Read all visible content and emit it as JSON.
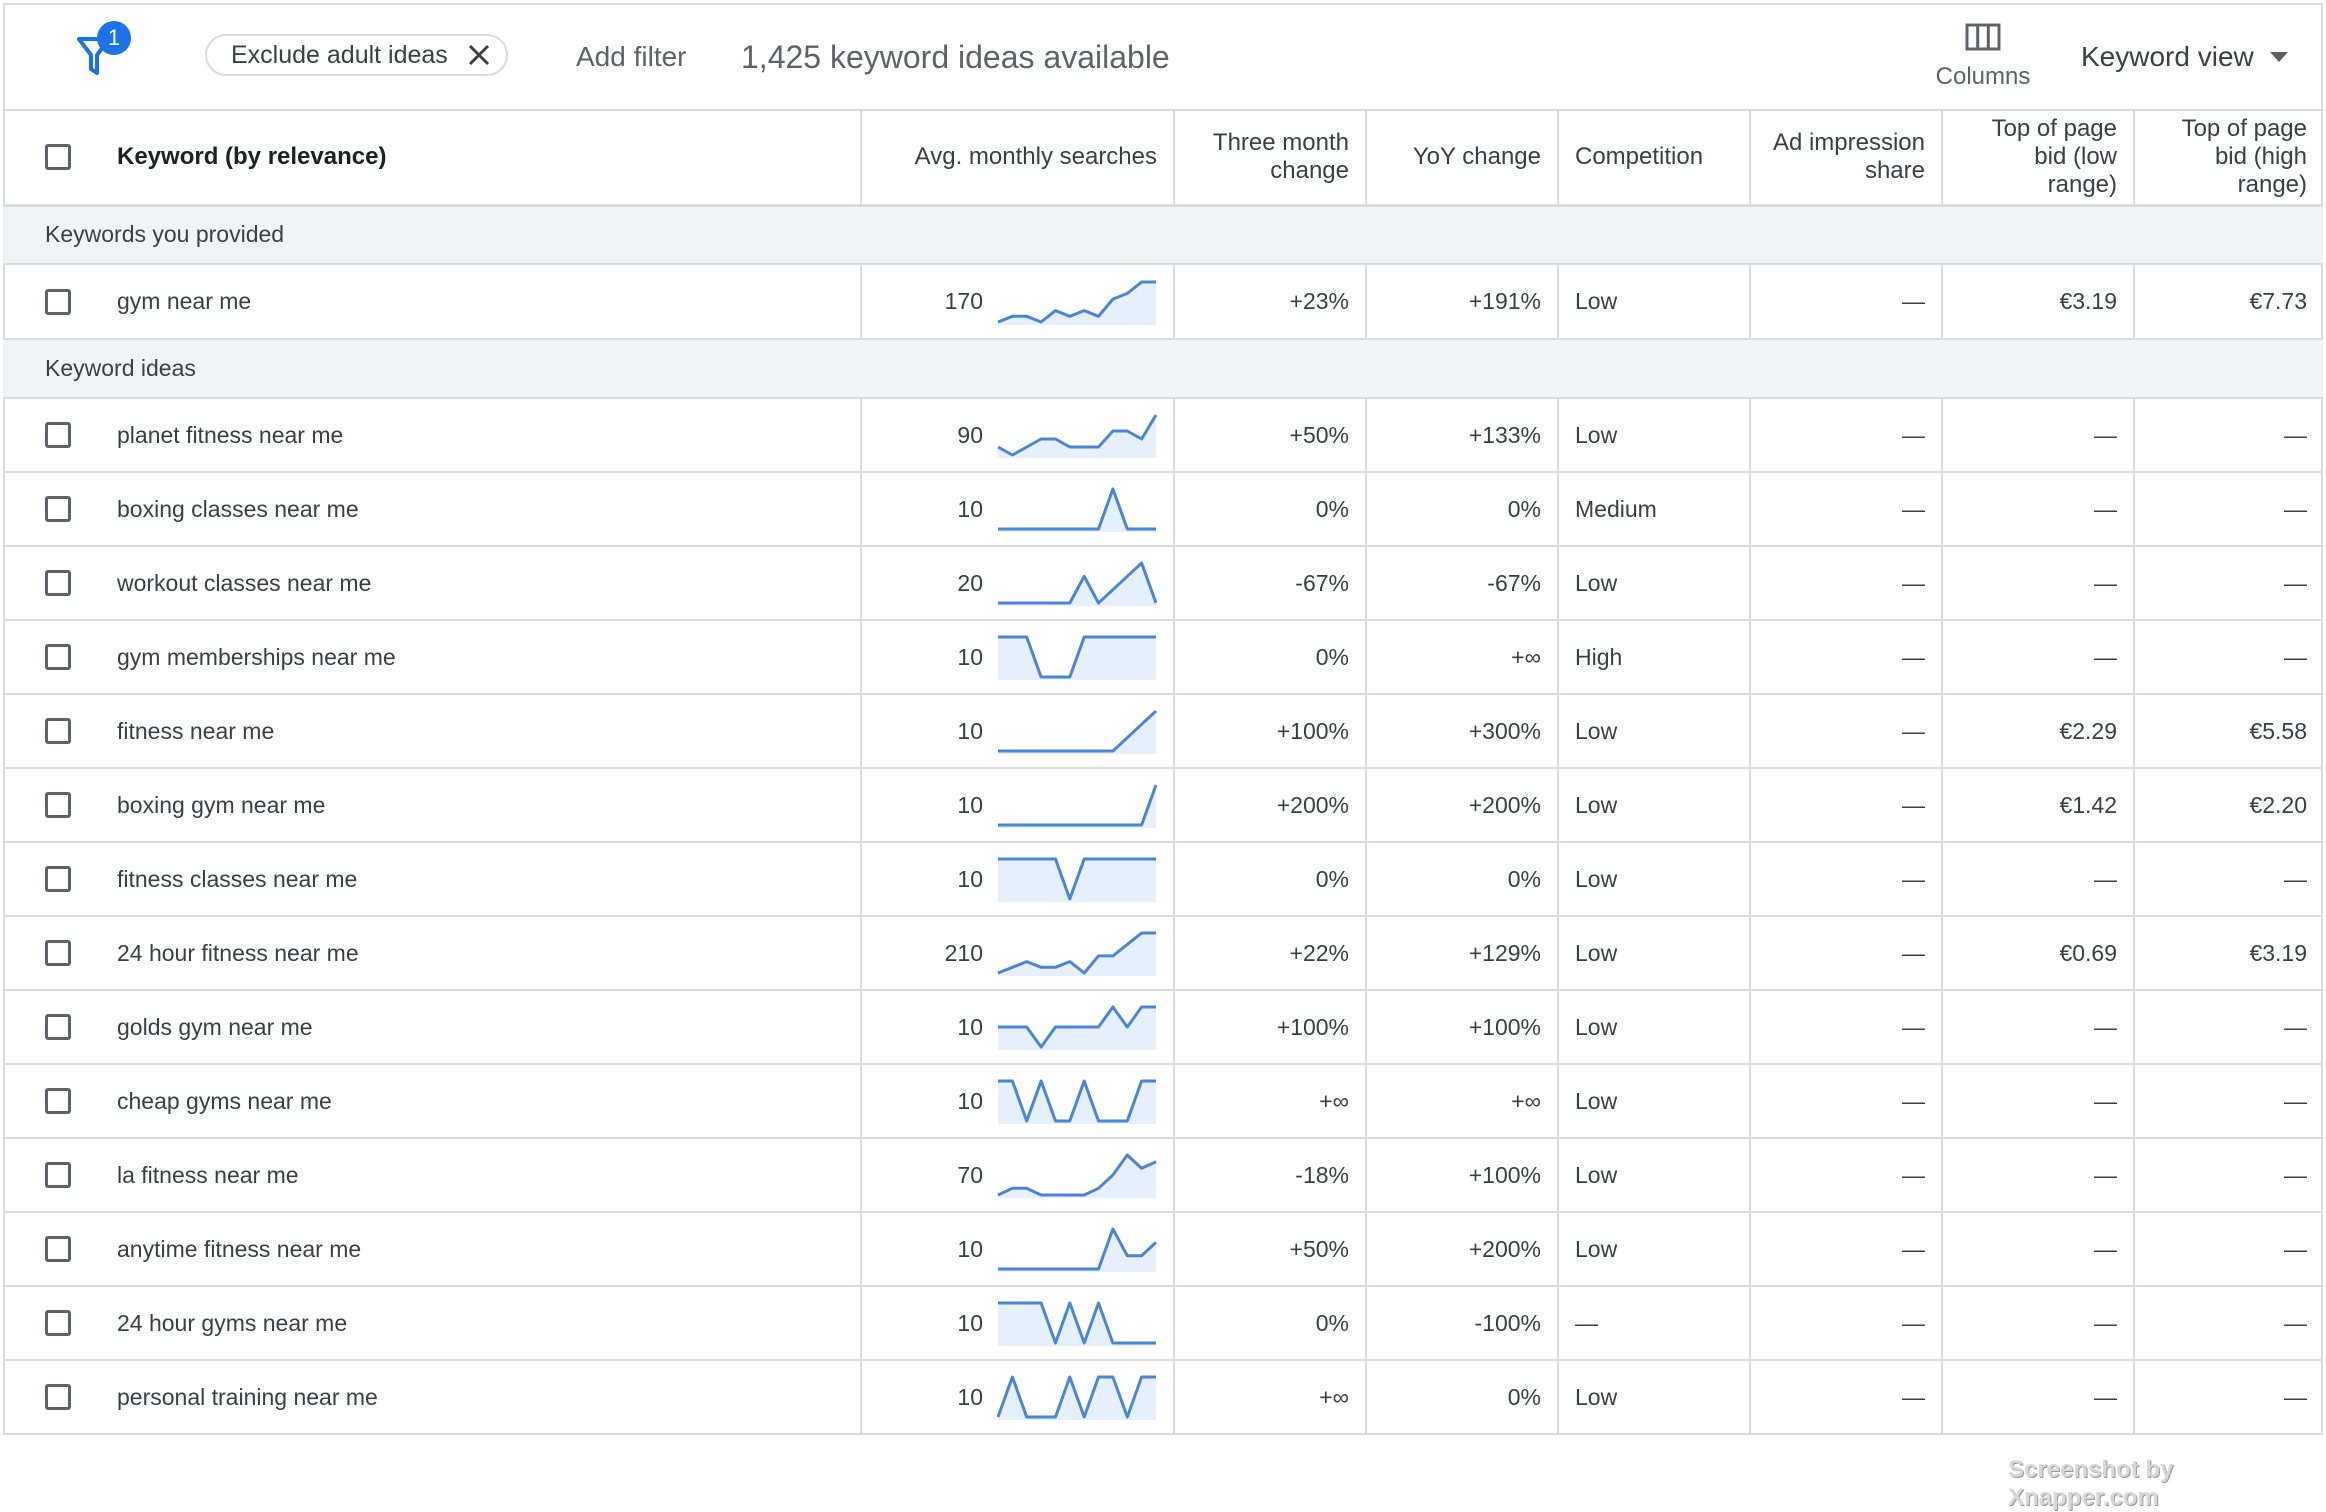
{
  "toolbar": {
    "filter_count": "1",
    "chip_label": "Exclude adult ideas",
    "add_filter_label": "Add filter",
    "ideas_count_text": "1,425 keyword ideas available",
    "columns_label": "Columns",
    "view_label": "Keyword view"
  },
  "columns": {
    "keyword": "Keyword (by relevance)",
    "avg_searches": "Avg. monthly searches",
    "three_month_line1": "Three month",
    "three_month_line2": "change",
    "yoy": "YoY change",
    "competition": "Competition",
    "ad_share_line1": "Ad impression",
    "ad_share_line2": "share",
    "low_bid_line1": "Top of page",
    "low_bid_line2": "bid (low",
    "low_bid_line3": "range)",
    "high_bid_line1": "Top of page",
    "high_bid_line2": "bid (high",
    "high_bid_line3": "range)"
  },
  "sections": {
    "provided": "Keywords you provided",
    "ideas": "Keyword ideas"
  },
  "chart_color": "#4a86d8",
  "chart_fill": "#e6effc",
  "provided_rows": [
    {
      "keyword": "gym near me",
      "searches": "170",
      "trend": [
        2,
        3,
        3,
        2,
        4,
        3,
        4,
        3,
        6,
        7,
        9,
        9
      ],
      "three_month": "+23%",
      "yoy": "+191%",
      "competition": "Low",
      "ad_share": "—",
      "low_bid": "€3.19",
      "high_bid": "€7.73"
    }
  ],
  "idea_rows": [
    {
      "keyword": "planet fitness near me",
      "searches": "90",
      "trend": [
        3,
        2,
        3,
        4,
        4,
        3,
        3,
        3,
        5,
        5,
        4,
        7
      ],
      "three_month": "+50%",
      "yoy": "+133%",
      "competition": "Low",
      "ad_share": "—",
      "low_bid": "—",
      "high_bid": "—"
    },
    {
      "keyword": "boxing classes near me",
      "searches": "10",
      "trend": [
        0,
        0,
        0,
        0,
        0,
        0,
        0,
        0,
        1,
        0,
        0,
        0
      ],
      "three_month": "0%",
      "yoy": "0%",
      "competition": "Medium",
      "ad_share": "—",
      "low_bid": "—",
      "high_bid": "—"
    },
    {
      "keyword": "workout classes near me",
      "searches": "20",
      "trend": [
        0,
        0,
        0,
        0,
        0,
        0,
        2,
        0,
        1,
        2,
        3,
        0
      ],
      "three_month": "-67%",
      "yoy": "-67%",
      "competition": "Low",
      "ad_share": "—",
      "low_bid": "—",
      "high_bid": "—"
    },
    {
      "keyword": "gym memberships near me",
      "searches": "10",
      "trend": [
        1,
        1,
        1,
        0,
        0,
        0,
        1,
        1,
        1,
        1,
        1,
        1
      ],
      "three_month": "0%",
      "yoy": "+∞",
      "competition": "High",
      "ad_share": "—",
      "low_bid": "—",
      "high_bid": "—"
    },
    {
      "keyword": "fitness near me",
      "searches": "10",
      "trend": [
        0,
        0,
        0,
        0,
        0,
        0,
        0,
        0,
        0,
        1,
        2,
        3
      ],
      "three_month": "+100%",
      "yoy": "+300%",
      "competition": "Low",
      "ad_share": "—",
      "low_bid": "€2.29",
      "high_bid": "€5.58"
    },
    {
      "keyword": "boxing gym near me",
      "searches": "10",
      "trend": [
        0,
        0,
        0,
        0,
        0,
        0,
        0,
        0,
        0,
        0,
        0,
        3
      ],
      "three_month": "+200%",
      "yoy": "+200%",
      "competition": "Low",
      "ad_share": "—",
      "low_bid": "€1.42",
      "high_bid": "€2.20"
    },
    {
      "keyword": "fitness classes near me",
      "searches": "10",
      "trend": [
        1,
        1,
        1,
        1,
        1,
        0,
        1,
        1,
        1,
        1,
        1,
        1
      ],
      "three_month": "0%",
      "yoy": "0%",
      "competition": "Low",
      "ad_share": "—",
      "low_bid": "—",
      "high_bid": "—"
    },
    {
      "keyword": "24 hour fitness near me",
      "searches": "210",
      "trend": [
        2,
        3,
        4,
        3,
        3,
        4,
        2,
        5,
        5,
        7,
        9,
        9
      ],
      "three_month": "+22%",
      "yoy": "+129%",
      "competition": "Low",
      "ad_share": "—",
      "low_bid": "€0.69",
      "high_bid": "€3.19"
    },
    {
      "keyword": "golds gym near me",
      "searches": "10",
      "trend": [
        1,
        1,
        1,
        0,
        1,
        1,
        1,
        1,
        2,
        1,
        2,
        2
      ],
      "three_month": "+100%",
      "yoy": "+100%",
      "competition": "Low",
      "ad_share": "—",
      "low_bid": "—",
      "high_bid": "—"
    },
    {
      "keyword": "cheap gyms near me",
      "searches": "10",
      "trend": [
        1,
        1,
        0,
        1,
        0,
        0,
        1,
        0,
        0,
        0,
        1,
        1
      ],
      "three_month": "+∞",
      "yoy": "+∞",
      "competition": "Low",
      "ad_share": "—",
      "low_bid": "—",
      "high_bid": "—"
    },
    {
      "keyword": "la fitness near me",
      "searches": "70",
      "trend": [
        3,
        4,
        4,
        3,
        3,
        3,
        3,
        4,
        6,
        9,
        7,
        8
      ],
      "three_month": "-18%",
      "yoy": "+100%",
      "competition": "Low",
      "ad_share": "—",
      "low_bid": "—",
      "high_bid": "—"
    },
    {
      "keyword": "anytime fitness near me",
      "searches": "10",
      "trend": [
        0,
        0,
        0,
        0,
        0,
        0,
        0,
        0,
        3,
        1,
        1,
        2
      ],
      "three_month": "+50%",
      "yoy": "+200%",
      "competition": "Low",
      "ad_share": "—",
      "low_bid": "—",
      "high_bid": "—"
    },
    {
      "keyword": "24 hour gyms near me",
      "searches": "10",
      "trend": [
        1,
        1,
        1,
        1,
        0,
        1,
        0,
        1,
        0,
        0,
        0,
        0
      ],
      "three_month": "0%",
      "yoy": "-100%",
      "competition": "—",
      "ad_share": "—",
      "low_bid": "—",
      "high_bid": "—"
    },
    {
      "keyword": "personal training near me",
      "searches": "10",
      "trend": [
        0,
        1,
        0,
        0,
        0,
        1,
        0,
        1,
        1,
        0,
        1,
        1
      ],
      "three_month": "+∞",
      "yoy": "0%",
      "competition": "Low",
      "ad_share": "—",
      "low_bid": "—",
      "high_bid": "—"
    }
  ],
  "watermark": "Screenshot by Xnapper.com"
}
